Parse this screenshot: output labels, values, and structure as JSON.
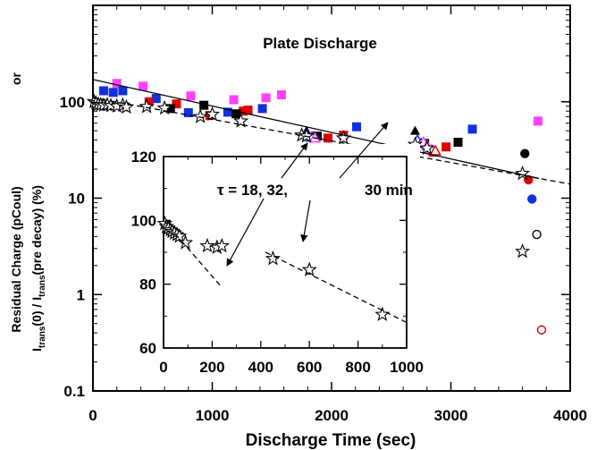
{
  "chart_data": [
    {
      "type": "scatter",
      "title": "Plate Discharge",
      "xlabel": "Discharge Time (sec)",
      "ylabel_line1": "Residual Charge (pCoul)",
      "ylabel_or": "or",
      "ylabel_line2_I": "I",
      "ylabel_line2_sub1": "trans",
      "ylabel_line2_mid": "(0) / I",
      "ylabel_line2_sub2": "trans",
      "ylabel_line2_end": "(pre decay) (%)",
      "xlim": [
        0,
        4000
      ],
      "ylim": [
        0.1,
        1000
      ],
      "yscale": "log",
      "x_ticks": [
        0,
        1000,
        2000,
        3000,
        4000
      ],
      "x_tick_labels": [
        "0",
        "1000",
        "2000",
        "3000",
        "4000"
      ],
      "y_ticks": [
        0.1,
        1,
        10,
        100
      ],
      "y_tick_labels": [
        "0.1",
        "1",
        "10",
        "100"
      ],
      "annotation_tau": "τ = 18, 32,",
      "annotation_30": "30 min",
      "colors": {
        "magenta": "#ff40ff",
        "blue": "#1030e0",
        "red": "#e00000",
        "black": "#000000"
      },
      "series": [
        {
          "name": "magenta squares",
          "marker": "square",
          "color": "#ff40ff",
          "x": [
            200,
            420,
            820,
            1180,
            1450,
            1580,
            3730
          ],
          "y": [
            155,
            145,
            115,
            105,
            110,
            118,
            63
          ]
        },
        {
          "name": "blue squares",
          "marker": "square",
          "color": "#1030e0",
          "x": [
            90,
            170,
            250,
            530,
            800,
            1130,
            1420,
            2210,
            3180
          ],
          "y": [
            130,
            125,
            130,
            108,
            77,
            78,
            85,
            55,
            52
          ]
        },
        {
          "name": "red squares",
          "marker": "square",
          "color": "#e00000",
          "x": [
            470,
            700,
            980,
            1260,
            1300,
            1970,
            2100,
            2850,
            2960
          ],
          "y": [
            100,
            95,
            72,
            80,
            82,
            42,
            45,
            30,
            34
          ]
        },
        {
          "name": "black squares",
          "marker": "square",
          "color": "#000000",
          "x": [
            650,
            930,
            1200,
            1880,
            2780,
            3060
          ],
          "y": [
            85,
            92,
            75,
            44,
            37,
            38
          ]
        },
        {
          "name": "black triangles",
          "marker": "triangle",
          "color": "#000000",
          "x": [
            1790,
            2700
          ],
          "y": [
            50,
            50
          ]
        },
        {
          "name": "blue triangles",
          "marker": "triangle-open",
          "color": "#1030e0",
          "x": [
            1790,
            1835,
            2720,
            2750
          ],
          "y": [
            46,
            43,
            40,
            37
          ]
        },
        {
          "name": "magenta triangles",
          "marker": "triangle-open",
          "color": "#ff40ff",
          "x": [
            1860,
            2770,
            2800,
            2840
          ],
          "y": [
            42,
            38,
            35,
            32
          ]
        },
        {
          "name": "red triangles",
          "marker": "triangle-open",
          "color": "#e00000",
          "x": [
            2870
          ],
          "y": [
            31
          ]
        },
        {
          "name": "circles",
          "marker": "circle",
          "points": [
            {
              "x": 3620,
              "y": 29,
              "color": "#000000",
              "filled": true
            },
            {
              "x": 3650,
              "y": 15.5,
              "color": "#e00000",
              "filled": true
            },
            {
              "x": 3680,
              "y": 9.8,
              "color": "#1030e0",
              "filled": true
            },
            {
              "x": 3720,
              "y": 4.2,
              "color": "#000000",
              "filled": false
            },
            {
              "x": 3760,
              "y": 0.43,
              "color": "#e00000",
              "filled": false
            }
          ]
        },
        {
          "name": "stars",
          "marker": "star-open",
          "color": "#000000",
          "x": [
            10,
            25,
            45,
            65,
            90,
            120,
            150,
            200,
            250,
            280,
            450,
            600,
            900,
            1000,
            1240,
            1750,
            1790,
            2100,
            2700,
            2800,
            3600,
            3600
          ],
          "y": [
            100,
            97,
            94,
            93,
            92,
            93,
            91,
            90,
            92,
            88,
            89,
            86,
            70,
            74,
            63,
            45,
            44,
            42,
            36,
            33,
            18,
            2.8
          ]
        },
        {
          "name": "solid fit line",
          "line": "solid",
          "x": [
            0,
            3740
          ],
          "y": [
            170,
            16
          ]
        },
        {
          "name": "dashed fit line",
          "line": "dashed",
          "x": [
            0,
            4000
          ],
          "y": [
            110,
            14
          ]
        }
      ]
    },
    {
      "type": "scatter",
      "title": "inset",
      "xlim": [
        0,
        1000
      ],
      "ylim": [
        60,
        120
      ],
      "x_ticks": [
        0,
        200,
        400,
        600,
        800,
        1000
      ],
      "x_tick_labels": [
        "0",
        "200",
        "400",
        "600",
        "800",
        "1000"
      ],
      "y_ticks": [
        60,
        80,
        100,
        120
      ],
      "y_tick_labels": [
        "60",
        "80",
        "100",
        "120"
      ],
      "series": [
        {
          "name": "stars",
          "marker": "star-open",
          "color": "#000000",
          "x": [
            5,
            12,
            20,
            28,
            35,
            45,
            55,
            65,
            90,
            180,
            220,
            240,
            450,
            600,
            900
          ],
          "y": [
            99,
            98,
            97.5,
            97,
            96.5,
            96,
            95.5,
            95,
            93,
            92,
            91.5,
            92,
            88,
            84.5,
            70.5
          ]
        },
        {
          "name": "dashed fit 1",
          "line": "dashed",
          "x": [
            0,
            240
          ],
          "y": [
            100,
            79
          ]
        },
        {
          "name": "dashed fit 2",
          "line": "dashed",
          "x": [
            420,
            1000
          ],
          "y": [
            90,
            68
          ]
        }
      ]
    }
  ]
}
